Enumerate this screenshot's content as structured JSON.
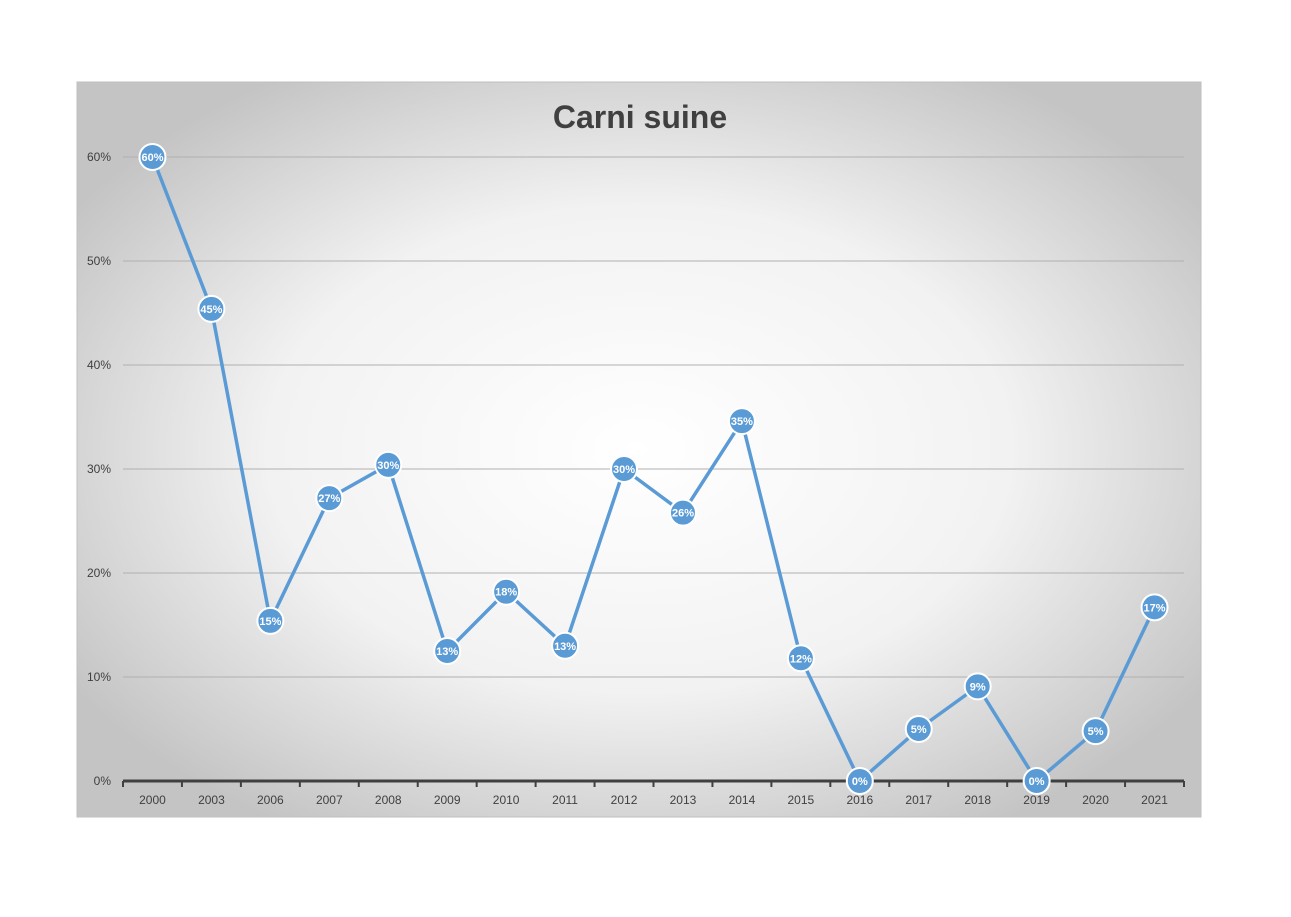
{
  "chart_data": {
    "type": "line",
    "title": "Carni suine",
    "xlabel": "",
    "ylabel": "",
    "categories": [
      "2000",
      "2003",
      "2006",
      "2007",
      "2008",
      "2009",
      "2010",
      "2011",
      "2012",
      "2013",
      "2014",
      "2015",
      "2016",
      "2017",
      "2018",
      "2019",
      "2020",
      "2021"
    ],
    "series": [
      {
        "values": [
          60,
          45.4,
          15.4,
          27.2,
          30.4,
          12.5,
          18.2,
          13.0,
          30.0,
          25.8,
          34.6,
          11.8,
          0,
          5.0,
          9.1,
          0,
          4.8,
          16.7
        ],
        "data_labels": [
          "60%",
          "45%",
          "15%",
          "27%",
          "30%",
          "13%",
          "18%",
          "13%",
          "30%",
          "26%",
          "35%",
          "12%",
          "0%",
          "5%",
          "9%",
          "0%",
          "5%",
          "17%"
        ],
        "color": "#5b9bd5"
      }
    ],
    "ylim": [
      0,
      60
    ],
    "yticks": [
      0,
      10,
      20,
      30,
      40,
      50,
      60
    ],
    "ytick_labels": [
      "0%",
      "10%",
      "20%",
      "30%",
      "40%",
      "50%",
      "60%"
    ],
    "grid": true,
    "legend": "none"
  }
}
